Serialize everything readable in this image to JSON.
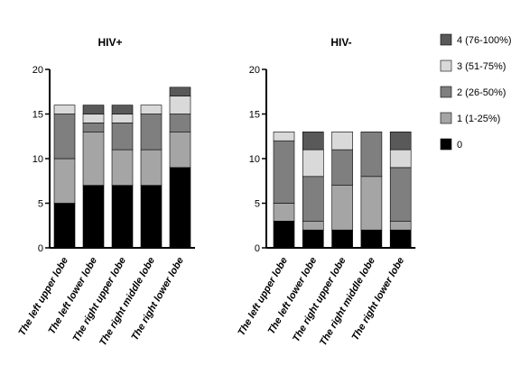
{
  "chart_data": [
    {
      "type": "bar",
      "stacked": true,
      "title": "HIV+",
      "categories": [
        "The left upper lobe",
        "The left lower lobe",
        "The right upper lobe",
        "The right middle lobe",
        "The right lower lobe"
      ],
      "ylim": [
        0,
        20
      ],
      "yticks": [
        0,
        5,
        10,
        15,
        20
      ],
      "series": [
        {
          "name": "0",
          "color": "#000000",
          "values": [
            5,
            7,
            7,
            7,
            9
          ]
        },
        {
          "name": "1 (1-25%)",
          "color": "#a5a5a5",
          "values": [
            5,
            6,
            4,
            4,
            4
          ]
        },
        {
          "name": "2 (26-50%)",
          "color": "#7f7f7f",
          "values": [
            5,
            1,
            3,
            4,
            2
          ]
        },
        {
          "name": "3 (51-75%)",
          "color": "#d9d9d9",
          "values": [
            1,
            1,
            1,
            1,
            2
          ]
        },
        {
          "name": "4 (76-100%)",
          "color": "#595959",
          "values": [
            0,
            1,
            1,
            0,
            1
          ]
        }
      ]
    },
    {
      "type": "bar",
      "stacked": true,
      "title": "HIV-",
      "categories": [
        "The left upper lobe",
        "The left lower lobe",
        "The right upper lobe",
        "The right middle lobe",
        "The right lower lobe"
      ],
      "ylim": [
        0,
        20
      ],
      "yticks": [
        0,
        5,
        10,
        15,
        20
      ],
      "series": [
        {
          "name": "0",
          "color": "#000000",
          "values": [
            3,
            2,
            2,
            2,
            2
          ]
        },
        {
          "name": "1 (1-25%)",
          "color": "#a5a5a5",
          "values": [
            2,
            1,
            5,
            6,
            1
          ]
        },
        {
          "name": "2 (26-50%)",
          "color": "#7f7f7f",
          "values": [
            7,
            5,
            4,
            5,
            6
          ]
        },
        {
          "name": "3 (51-75%)",
          "color": "#d9d9d9",
          "values": [
            1,
            3,
            2,
            0,
            2
          ]
        },
        {
          "name": "4 (76-100%)",
          "color": "#595959",
          "values": [
            0,
            2,
            0,
            0,
            2
          ]
        }
      ]
    }
  ],
  "legend": [
    {
      "label": "4 (76-100%)",
      "color": "#595959"
    },
    {
      "label": "3 (51-75%)",
      "color": "#d9d9d9"
    },
    {
      "label": "2 (26-50%)",
      "color": "#7f7f7f"
    },
    {
      "label": "1 (1-25%)",
      "color": "#a5a5a5"
    },
    {
      "label": "0",
      "color": "#000000"
    }
  ]
}
